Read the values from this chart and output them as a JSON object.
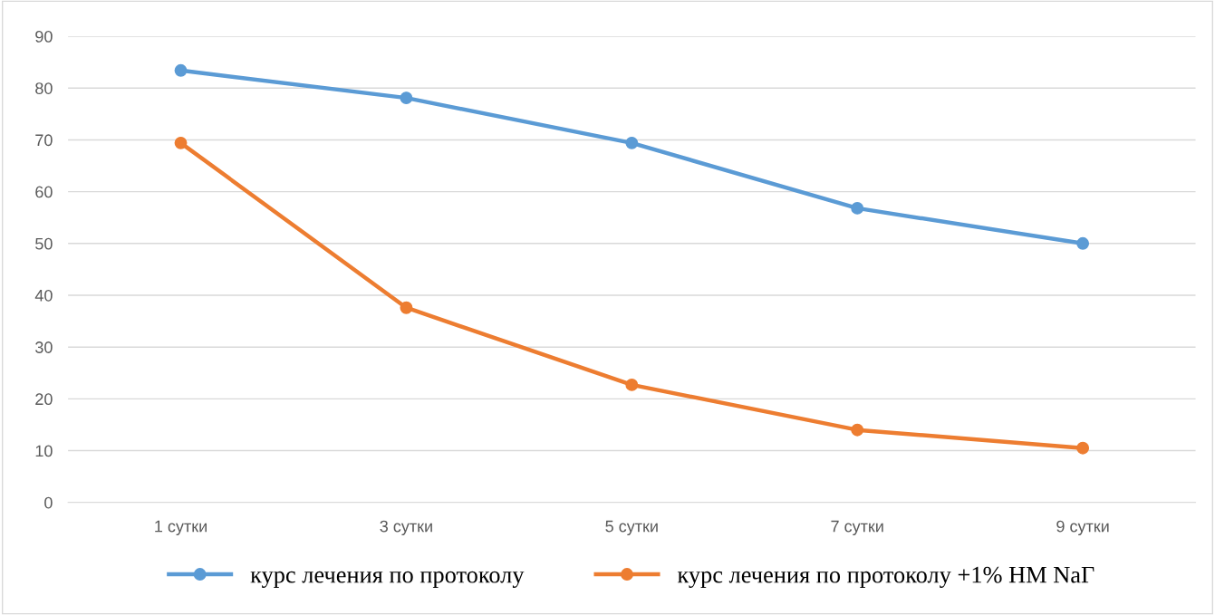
{
  "chart_data": {
    "type": "line",
    "categories": [
      "1 сутки",
      "3 сутки",
      "5 сутки",
      "7 сутки",
      "9 сутки"
    ],
    "series": [
      {
        "name": "курс лечения по протоколу",
        "color": "#5b9bd5",
        "values": [
          83.4,
          78.1,
          69.4,
          56.8,
          50.0
        ]
      },
      {
        "name": "курс лечения по протоколу +1% НМ NaГ",
        "color": "#ed7d31",
        "values": [
          69.4,
          37.6,
          22.7,
          14.0,
          10.5
        ]
      }
    ],
    "ylim": [
      0,
      90
    ],
    "yticks": [
      0,
      10,
      20,
      30,
      40,
      50,
      60,
      70,
      80,
      90
    ],
    "grid": "y",
    "legend": "bottom",
    "marker": "circle",
    "line_style": "solid"
  }
}
